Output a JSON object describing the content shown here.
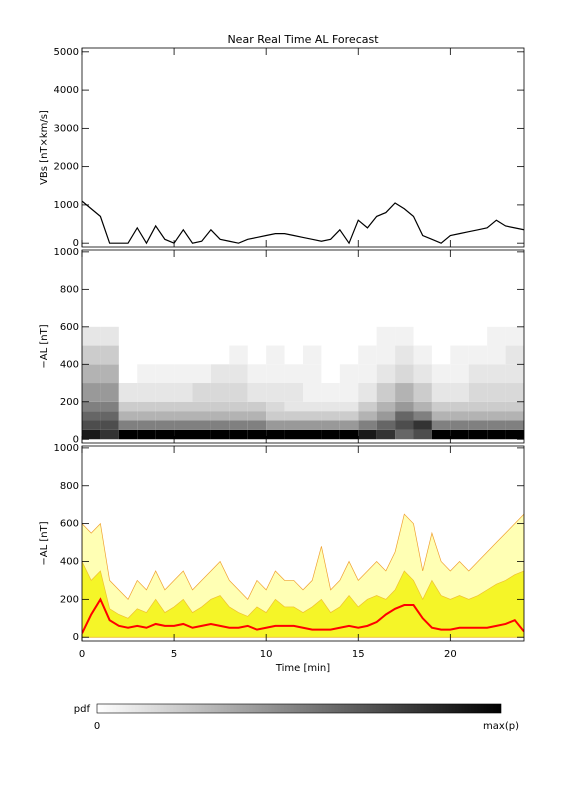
{
  "chart_data": [
    {
      "type": "line",
      "title": "Near Real Time AL Forecast",
      "ylabel": "VBs [nT×km/s]",
      "x": [
        0,
        0.5,
        1,
        1.5,
        2,
        2.5,
        3,
        3.5,
        4,
        4.5,
        5,
        5.5,
        6,
        6.5,
        7,
        7.5,
        8,
        8.5,
        9,
        9.5,
        10,
        10.5,
        11,
        11.5,
        12,
        12.5,
        13,
        13.5,
        14,
        14.5,
        15,
        15.5,
        16,
        16.5,
        17,
        17.5,
        18,
        18.5,
        19,
        19.5,
        20,
        20.5,
        21,
        21.5,
        22,
        22.5,
        23,
        23.5,
        24
      ],
      "series": [
        {
          "color": "#000000",
          "values": [
            1100,
            900,
            700,
            0,
            0,
            0,
            400,
            0,
            450,
            100,
            0,
            350,
            0,
            50,
            350,
            100,
            50,
            0,
            100,
            150,
            200,
            250,
            250,
            200,
            150,
            100,
            50,
            100,
            350,
            0,
            600,
            400,
            700,
            800,
            1050,
            900,
            700,
            200,
            100,
            0,
            200,
            250,
            300,
            350,
            400,
            600,
            450,
            400,
            350
          ]
        }
      ],
      "xlim": [
        0,
        24
      ],
      "xticks": [
        0,
        5,
        10,
        15,
        20
      ],
      "ylim": [
        -100,
        5100
      ],
      "yticks": [
        0,
        1000,
        2000,
        3000,
        4000,
        5000
      ]
    },
    {
      "type": "heatmap",
      "ylabel": "−AL [nT]",
      "x_edges": [
        0,
        1,
        2,
        3,
        4,
        5,
        6,
        7,
        8,
        9,
        10,
        11,
        12,
        13,
        14,
        15,
        16,
        17,
        18,
        19,
        20,
        21,
        22,
        23,
        24
      ],
      "y_edges": [
        0,
        50,
        100,
        150,
        200,
        300,
        400,
        500,
        600
      ],
      "pdf": [
        [
          0.9,
          0.7,
          0.6,
          0.5,
          0.4,
          0.3,
          0.2,
          0.1
        ],
        [
          0.8,
          0.7,
          0.6,
          0.5,
          0.4,
          0.3,
          0.2,
          0.1
        ],
        [
          1,
          0.5,
          0.3,
          0.2,
          0.1,
          0,
          0,
          0
        ],
        [
          1,
          0.5,
          0.3,
          0.2,
          0.1,
          0.05,
          0,
          0
        ],
        [
          1,
          0.5,
          0.3,
          0.2,
          0.1,
          0.05,
          0,
          0
        ],
        [
          1,
          0.5,
          0.3,
          0.2,
          0.1,
          0.05,
          0,
          0
        ],
        [
          1,
          0.5,
          0.3,
          0.2,
          0.15,
          0.05,
          0,
          0
        ],
        [
          1,
          0.5,
          0.3,
          0.2,
          0.15,
          0.1,
          0,
          0
        ],
        [
          1,
          0.5,
          0.3,
          0.2,
          0.15,
          0.1,
          0.05,
          0
        ],
        [
          1,
          0.5,
          0.3,
          0.2,
          0.1,
          0.05,
          0,
          0
        ],
        [
          1,
          0.4,
          0.2,
          0.15,
          0.1,
          0.05,
          0.05,
          0
        ],
        [
          1,
          0.4,
          0.2,
          0.1,
          0.1,
          0.05,
          0,
          0
        ],
        [
          1,
          0.4,
          0.2,
          0.1,
          0.05,
          0.05,
          0.05,
          0
        ],
        [
          1,
          0.4,
          0.2,
          0.1,
          0.05,
          0,
          0,
          0
        ],
        [
          1,
          0.4,
          0.2,
          0.1,
          0.05,
          0.05,
          0,
          0
        ],
        [
          0.9,
          0.5,
          0.3,
          0.2,
          0.1,
          0.05,
          0.05,
          0
        ],
        [
          0.8,
          0.6,
          0.4,
          0.3,
          0.2,
          0.1,
          0.05,
          0.05
        ],
        [
          0.6,
          0.7,
          0.6,
          0.4,
          0.3,
          0.15,
          0.1,
          0.05
        ],
        [
          0.7,
          0.8,
          0.5,
          0.3,
          0.2,
          0.1,
          0.05,
          0
        ],
        [
          1,
          0.5,
          0.3,
          0.2,
          0.1,
          0.05,
          0,
          0
        ],
        [
          1,
          0.5,
          0.3,
          0.2,
          0.1,
          0.05,
          0.05,
          0
        ],
        [
          1,
          0.5,
          0.3,
          0.2,
          0.15,
          0.1,
          0.05,
          0
        ],
        [
          1,
          0.5,
          0.3,
          0.2,
          0.15,
          0.1,
          0.05,
          0.05
        ],
        [
          1,
          0.5,
          0.3,
          0.2,
          0.15,
          0.1,
          0.1,
          0.05
        ]
      ],
      "colorbar": {
        "label": "pdf",
        "min_label": "0",
        "max_label": "max(p)"
      },
      "xlim": [
        0,
        24
      ],
      "xticks": [
        0,
        5,
        10,
        15,
        20
      ],
      "ylim": [
        -20,
        1010
      ],
      "yticks": [
        0,
        200,
        400,
        600,
        800,
        1000
      ]
    },
    {
      "type": "area",
      "ylabel": "−AL [nT]",
      "xlabel": "Time [min]",
      "x": [
        0,
        0.5,
        1,
        1.5,
        2,
        2.5,
        3,
        3.5,
        4,
        4.5,
        5,
        5.5,
        6,
        6.5,
        7,
        7.5,
        8,
        8.5,
        9,
        9.5,
        10,
        10.5,
        11,
        11.5,
        12,
        12.5,
        13,
        13.5,
        14,
        14.5,
        15,
        15.5,
        16,
        16.5,
        17,
        17.5,
        18,
        18.5,
        19,
        19.5,
        20,
        20.5,
        21,
        21.5,
        22,
        22.5,
        23,
        23.5,
        24
      ],
      "series": [
        {
          "color": "#ffffb4",
          "edgecolor": "#f0a030",
          "values": [
            600,
            550,
            600,
            300,
            250,
            200,
            300,
            250,
            350,
            250,
            300,
            350,
            250,
            300,
            350,
            400,
            300,
            250,
            200,
            300,
            250,
            350,
            300,
            300,
            250,
            300,
            480,
            250,
            300,
            400,
            300,
            350,
            400,
            350,
            450,
            650,
            600,
            350,
            550,
            400,
            350,
            400,
            350,
            400,
            450,
            500,
            550,
            600,
            650
          ]
        },
        {
          "color": "#f5f528",
          "edgecolor": "#f0c030",
          "values": [
            400,
            300,
            350,
            150,
            120,
            100,
            150,
            130,
            200,
            130,
            160,
            200,
            130,
            160,
            200,
            220,
            160,
            130,
            110,
            160,
            130,
            200,
            160,
            160,
            130,
            160,
            200,
            130,
            160,
            220,
            160,
            200,
            220,
            200,
            250,
            350,
            300,
            200,
            300,
            220,
            200,
            220,
            200,
            220,
            250,
            280,
            300,
            330,
            350
          ]
        },
        {
          "color": "#ff0000",
          "values": [
            20,
            120,
            200,
            90,
            60,
            50,
            60,
            50,
            70,
            60,
            60,
            70,
            50,
            60,
            70,
            60,
            50,
            50,
            60,
            40,
            50,
            60,
            60,
            60,
            50,
            40,
            40,
            40,
            50,
            60,
            50,
            60,
            80,
            120,
            150,
            170,
            170,
            100,
            50,
            40,
            40,
            50,
            50,
            50,
            50,
            60,
            70,
            90,
            30
          ]
        }
      ],
      "xlim": [
        0,
        24
      ],
      "xticks": [
        0,
        5,
        10,
        15,
        20
      ],
      "ylim": [
        -20,
        1010
      ],
      "yticks": [
        0,
        200,
        400,
        600,
        800,
        1000
      ]
    }
  ]
}
